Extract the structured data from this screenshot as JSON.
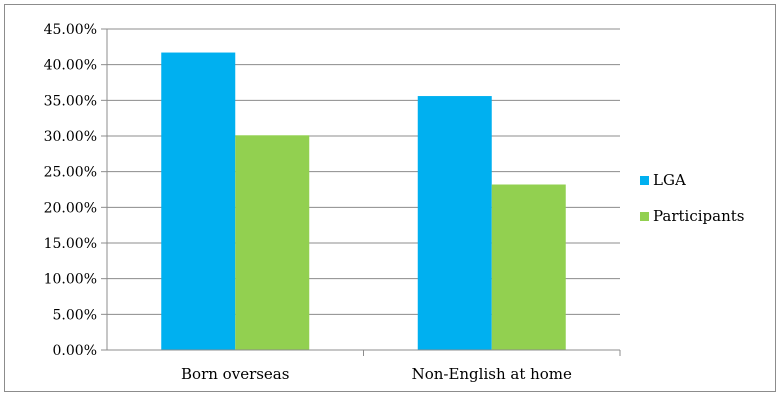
{
  "chart_data": {
    "type": "bar",
    "categories": [
      "Born overseas",
      "Non-English at home"
    ],
    "series": [
      {
        "name": "LGA",
        "values": [
          41.7,
          35.6
        ],
        "color": "#00b0f0"
      },
      {
        "name": "Participants",
        "values": [
          30.1,
          23.2
        ],
        "color": "#92d050"
      }
    ],
    "yticks": [
      "0.00%",
      "5.00%",
      "10.00%",
      "15.00%",
      "20.00%",
      "25.00%",
      "30.00%",
      "35.00%",
      "40.00%",
      "45.00%"
    ],
    "ylim": [
      0,
      45
    ],
    "grid": true,
    "legend_position": "right"
  }
}
